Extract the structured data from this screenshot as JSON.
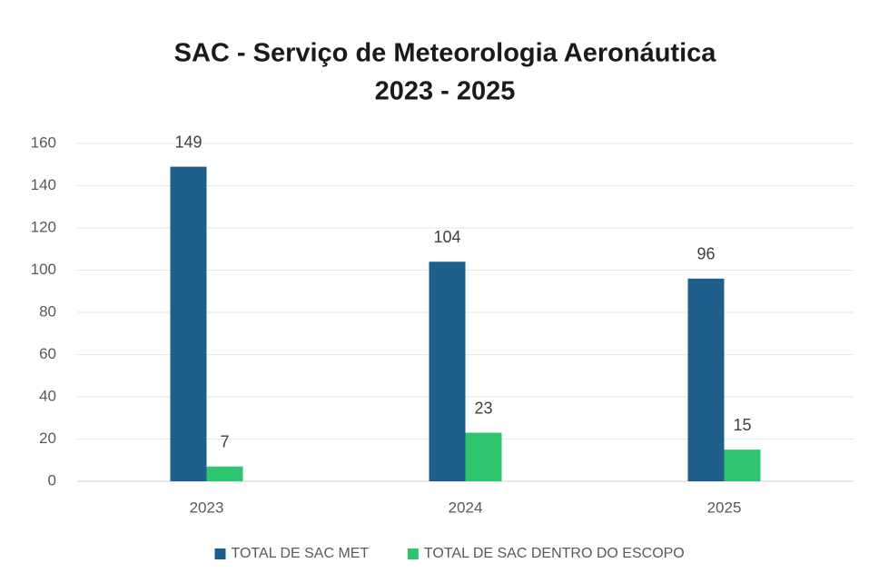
{
  "chart_data": {
    "type": "bar",
    "title": "SAC - Serviço de Meteorologia Aeronáutica",
    "subtitle": "2023 - 2025",
    "categories": [
      "2023",
      "2024",
      "2025"
    ],
    "series": [
      {
        "name": "TOTAL DE SAC MET",
        "color": "#1f5f8b",
        "values": [
          149,
          104,
          96
        ]
      },
      {
        "name": "TOTAL DE SAC DENTRO DO ESCOPO",
        "color": "#2fc56f",
        "values": [
          7,
          23,
          15
        ]
      }
    ],
    "ylim": [
      0,
      160
    ],
    "yticks": [
      0,
      20,
      40,
      60,
      80,
      100,
      120,
      140,
      160
    ],
    "grid": true,
    "legend": "bottom"
  }
}
